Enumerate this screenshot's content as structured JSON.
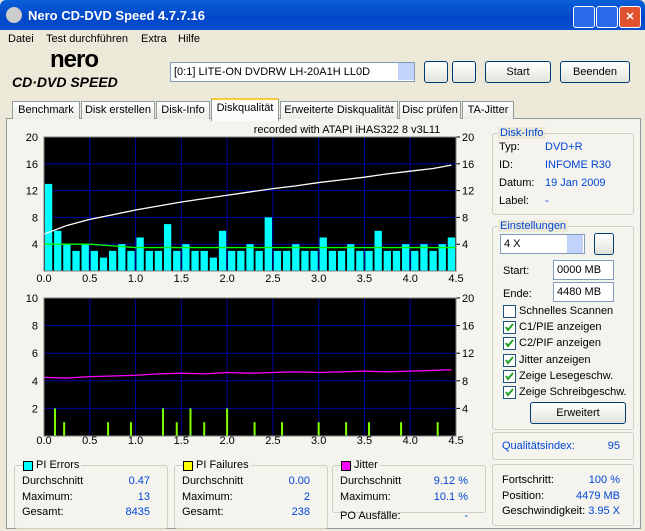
{
  "window": {
    "title": "Nero CD-DVD Speed 4.7.7.16"
  },
  "menu": [
    "Datei",
    "Test durchführen",
    "Extra",
    "Hilfe"
  ],
  "logo": {
    "brand": "nero",
    "product": "CD·DVD SPEED"
  },
  "toolbar": {
    "drive": "[0:1]   LITE-ON DVDRW LH-20A1H LL0D",
    "start": "Start",
    "stop": "Beenden"
  },
  "tabs": [
    "Benchmark",
    "Disk erstellen",
    "Disk-Info",
    "Diskqualität",
    "Erweiterte Diskqualität",
    "Disc prüfen",
    "TA-Jitter"
  ],
  "active_tab": 3,
  "disk_info": {
    "title": "Disk-Info",
    "rows": [
      [
        "Typ:",
        "DVD+R"
      ],
      [
        "ID:",
        "INFOME R30"
      ],
      [
        "Datum:",
        "19 Jan 2009"
      ],
      [
        "Label:",
        "-"
      ]
    ]
  },
  "settings": {
    "title": "Einstellungen",
    "speed": "4 X",
    "start_label": "Start:",
    "start": "0000 MB",
    "end_label": "Ende:",
    "end": "4480 MB",
    "checks": [
      {
        "label": "Schnelles Scannen",
        "checked": false
      },
      {
        "label": "C1/PIE anzeigen",
        "checked": true
      },
      {
        "label": "C2/PIF anzeigen",
        "checked": true
      },
      {
        "label": "Jitter anzeigen",
        "checked": true
      },
      {
        "label": "Zeige Lesegeschw.",
        "checked": true
      },
      {
        "label": "Zeige Schreibgeschw.",
        "checked": true
      }
    ],
    "button": "Erweitert"
  },
  "quality": {
    "label": "Qualitätsindex:",
    "value": "95"
  },
  "progress": {
    "rows": [
      [
        "Fortschritt:",
        "100 %"
      ],
      [
        "Position:",
        "4479 MB"
      ],
      [
        "Geschwindigkeit:",
        "3.95 X"
      ]
    ]
  },
  "stats": [
    {
      "title": "PI Errors",
      "color": "#00ffff",
      "rows": [
        [
          "Durchschnitt",
          "0.47"
        ],
        [
          "Maximum:",
          "13"
        ],
        [
          "Gesamt:",
          "8435"
        ]
      ]
    },
    {
      "title": "PI Failures",
      "color": "#ffff00",
      "rows": [
        [
          "Durchschnitt",
          "0.00"
        ],
        [
          "Maximum:",
          "2"
        ],
        [
          "Gesamt:",
          "238"
        ]
      ]
    },
    {
      "title": "Jitter",
      "color": "#ff00ff",
      "rows": [
        [
          "Durchschnitt",
          "9.12 %"
        ],
        [
          "Maximum:",
          "10.1 %"
        ]
      ],
      "extra": [
        "PO Ausfälle:",
        "-"
      ]
    }
  ],
  "chart_data": [
    {
      "type": "combo",
      "title": "recorded with ATAPI   iHAS322   8     v3L11",
      "xlim": [
        0,
        4.5
      ],
      "ylim": [
        0,
        20
      ],
      "y2lim": [
        0,
        20
      ],
      "xticks": [
        {
          "value": 0,
          "label": "0.0"
        },
        0.5,
        {
          "value": 1,
          "label": "1.0"
        },
        1.5,
        {
          "value": 2,
          "label": "2.0"
        },
        2.5,
        {
          "value": 3,
          "label": "3.0"
        },
        3.5,
        {
          "value": 4,
          "label": "4.0"
        },
        4.5
      ],
      "yticks": [
        4,
        8,
        12,
        16,
        20
      ],
      "y2ticks": [
        4,
        8,
        12,
        16,
        20
      ],
      "grid": true,
      "series": [
        {
          "kind": "bar",
          "color": "#00ffff",
          "x": [
            0.05,
            0.15,
            0.25,
            0.35,
            0.45,
            0.55,
            0.65,
            0.75,
            0.85,
            0.95,
            1.05,
            1.15,
            1.25,
            1.35,
            1.45,
            1.55,
            1.65,
            1.75,
            1.85,
            1.95,
            2.05,
            2.15,
            2.25,
            2.35,
            2.45,
            2.55,
            2.65,
            2.75,
            2.85,
            2.95,
            3.05,
            3.15,
            3.25,
            3.35,
            3.45,
            3.55,
            3.65,
            3.75,
            3.85,
            3.95,
            4.05,
            4.15,
            4.25,
            4.35,
            4.45
          ],
          "values": [
            13,
            6,
            4,
            3,
            4,
            3,
            2,
            3,
            4,
            3,
            5,
            3,
            3,
            7,
            3,
            4,
            3,
            3,
            2,
            6,
            3,
            3,
            4,
            3,
            8,
            3,
            3,
            4,
            3,
            3,
            5,
            3,
            3,
            4,
            3,
            3,
            6,
            3,
            3,
            4,
            3,
            4,
            3,
            4,
            5
          ]
        },
        {
          "kind": "line",
          "color": "#00ff00",
          "x": [
            0,
            0.5,
            1,
            1.5,
            2,
            2.5,
            3,
            3.5,
            4,
            4.5
          ],
          "values": [
            4,
            4,
            3.5,
            3.5,
            3.5,
            3.5,
            3.5,
            3.5,
            3.5,
            3.5
          ]
        },
        {
          "kind": "line",
          "color": "#ffffff",
          "axis": "y2",
          "x": [
            0,
            0.25,
            0.5,
            0.75,
            1,
            1.25,
            1.5,
            1.75,
            2,
            2.25,
            2.5,
            2.75,
            3,
            3.25,
            3.5,
            3.75,
            4,
            4.25,
            4.45
          ],
          "values": [
            5.5,
            6.8,
            7.7,
            8.4,
            9.1,
            9.7,
            10.3,
            10.8,
            11.3,
            11.8,
            12.3,
            12.7,
            13.2,
            13.6,
            14,
            14.5,
            14.9,
            15.3,
            15.8
          ]
        }
      ]
    },
    {
      "type": "combo",
      "xlim": [
        0,
        4.5
      ],
      "ylim": [
        0,
        10
      ],
      "y2lim": [
        0,
        20
      ],
      "xticks": [
        {
          "value": 0,
          "label": "0.0"
        },
        0.5,
        {
          "value": 1,
          "label": "1.0"
        },
        1.5,
        {
          "value": 2,
          "label": "2.0"
        },
        2.5,
        {
          "value": 3,
          "label": "3.0"
        },
        3.5,
        {
          "value": 4,
          "label": "4.0"
        },
        4.5
      ],
      "yticks": [
        2,
        4,
        6,
        8,
        10
      ],
      "y2ticks": [
        4,
        8,
        12,
        16,
        20
      ],
      "grid": true,
      "series": [
        {
          "kind": "bar",
          "color": "#80ff00",
          "x": [
            0.12,
            0.22,
            0.7,
            0.95,
            1.3,
            1.45,
            1.6,
            1.75,
            2,
            2.3,
            2.6,
            3,
            3.3,
            3.55,
            3.9,
            4.3
          ],
          "values": [
            2,
            1,
            1,
            1,
            2,
            1,
            2,
            1,
            2,
            1,
            1,
            1,
            1,
            1,
            1,
            1
          ]
        },
        {
          "kind": "line",
          "color": "#ff00ff",
          "axis": "y2",
          "x": [
            0,
            0.25,
            0.5,
            0.75,
            1,
            1.25,
            1.5,
            1.75,
            2,
            2.25,
            2.5,
            2.75,
            3,
            3.25,
            3.5,
            3.75,
            4,
            4.25,
            4.45
          ],
          "values": [
            8.5,
            8.4,
            8.6,
            8.7,
            8.8,
            9,
            9.1,
            9,
            9.2,
            9.1,
            9.2,
            9.3,
            9.2,
            9.3,
            9.4,
            9.3,
            9.4,
            9.5,
            9.6
          ]
        }
      ]
    }
  ]
}
